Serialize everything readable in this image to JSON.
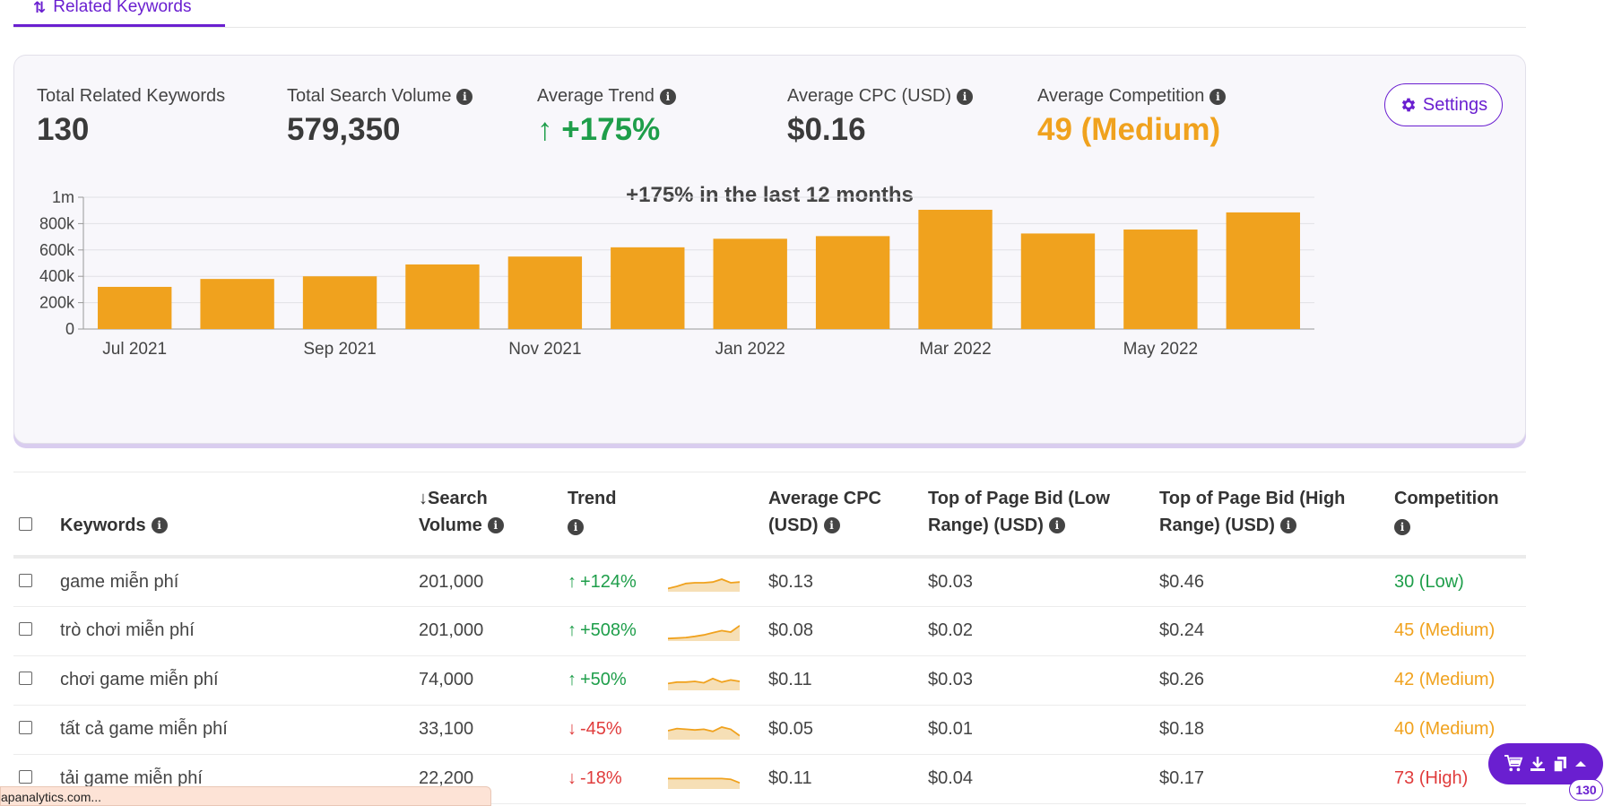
{
  "tab": {
    "icon": "swap-vertical-icon",
    "label": "Related Keywords"
  },
  "stats": [
    {
      "label": "Total Related Keywords",
      "value": "130",
      "info": false,
      "color": "#3a3a3a"
    },
    {
      "label": "Total Search Volume",
      "value": "579,350",
      "info": true,
      "color": "#3a3a3a"
    },
    {
      "label": "Average Trend",
      "value": "+175%",
      "info": true,
      "color": "#1e9e4a",
      "arrow": "↑"
    },
    {
      "label": "Average CPC (USD)",
      "value": "$0.16",
      "info": true,
      "color": "#3a3a3a"
    },
    {
      "label": "Average Competition",
      "value": "49 (Medium)",
      "info": true,
      "color": "#f0a21e"
    }
  ],
  "settings_label": "Settings",
  "chart_data": {
    "type": "bar",
    "title": "+175% in the last 12 months",
    "categories": [
      "Jul 2021",
      "Aug 2021",
      "Sep 2021",
      "Oct 2021",
      "Nov 2021",
      "Dec 2021",
      "Jan 2022",
      "Feb 2022",
      "Mar 2022",
      "Apr 2022",
      "May 2022",
      "Jun 2022"
    ],
    "x_tick_labels": [
      "Jul 2021",
      "Sep 2021",
      "Nov 2021",
      "Jan 2022",
      "Mar 2022",
      "May 2022"
    ],
    "values": [
      320000,
      380000,
      400000,
      490000,
      550000,
      620000,
      685000,
      705000,
      905000,
      725000,
      755000,
      885000
    ],
    "ylim": [
      0,
      1000000
    ],
    "y_ticks": [
      0,
      200000,
      400000,
      600000,
      800000,
      1000000
    ],
    "y_tick_labels": [
      "0",
      "200k",
      "400k",
      "600k",
      "800k",
      "1m"
    ],
    "bar_color": "#f0a21e",
    "grid": true
  },
  "table": {
    "headers": {
      "keywords": "Keywords",
      "search_volume_arrow": "↓",
      "search_volume_1": "Search",
      "search_volume_2": "Volume",
      "trend": "Trend",
      "cpc_1": "Average CPC",
      "cpc_2": "(USD)",
      "bid_low_1": "Top of Page Bid (Low",
      "bid_low_2": "Range) (USD)",
      "bid_high_1": "Top of Page Bid (High",
      "bid_high_2": "Range) (USD)",
      "competition": "Competition"
    },
    "rows": [
      {
        "keyword": "game miễn phí",
        "volume": "201,000",
        "trend_dir": "up",
        "trend_arrow": "↑",
        "trend": "+124%",
        "spark": [
          0.1,
          0.25,
          0.45,
          0.5,
          0.5,
          0.55,
          0.75,
          0.5,
          0.55
        ],
        "cpc": "$0.13",
        "bid_low": "$0.03",
        "bid_high": "$0.46",
        "competition": "30 (Low)",
        "comp_level": "low"
      },
      {
        "keyword": "trò chơi miễn phí",
        "volume": "201,000",
        "trend_dir": "up",
        "trend_arrow": "↑",
        "trend": "+508%",
        "spark": [
          0.05,
          0.08,
          0.12,
          0.2,
          0.3,
          0.45,
          0.6,
          0.5,
          0.95
        ],
        "cpc": "$0.08",
        "bid_low": "$0.02",
        "bid_high": "$0.24",
        "competition": "45 (Medium)",
        "comp_level": "medium"
      },
      {
        "keyword": "chơi game miễn phí",
        "volume": "74,000",
        "trend_dir": "up",
        "trend_arrow": "↑",
        "trend": "+50%",
        "spark": [
          0.35,
          0.45,
          0.45,
          0.5,
          0.4,
          0.7,
          0.45,
          0.6,
          0.5
        ],
        "cpc": "$0.11",
        "bid_low": "$0.03",
        "bid_high": "$0.26",
        "competition": "42 (Medium)",
        "comp_level": "medium"
      },
      {
        "keyword": "tất cả game miễn phí",
        "volume": "33,100",
        "trend_dir": "down",
        "trend_arrow": "↓",
        "trend": "-45%",
        "spark": [
          0.5,
          0.65,
          0.6,
          0.55,
          0.6,
          0.45,
          0.75,
          0.6,
          0.15
        ],
        "cpc": "$0.05",
        "bid_low": "$0.01",
        "bid_high": "$0.18",
        "competition": "40 (Medium)",
        "comp_level": "medium"
      },
      {
        "keyword": "tải game miễn phí",
        "volume": "22,200",
        "trend_dir": "down",
        "trend_arrow": "↓",
        "trend": "-18%",
        "spark": [
          0.6,
          0.6,
          0.6,
          0.6,
          0.6,
          0.6,
          0.6,
          0.55,
          0.3
        ],
        "cpc": "$0.11",
        "bid_low": "$0.04",
        "bid_high": "$0.17",
        "competition": "73 (High)",
        "comp_level": "high"
      }
    ]
  },
  "status_url": "apanalytics.com...",
  "fab_icons": [
    "cart-icon",
    "download-icon",
    "copy-icon",
    "chevron-up-icon"
  ],
  "badge_count": "130"
}
